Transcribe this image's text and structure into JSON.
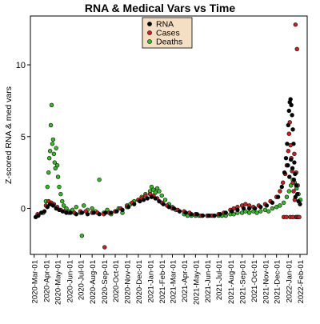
{
  "chart_data": {
    "type": "scatter",
    "title": "RNA & Medical Vars vs Time",
    "xlabel": "",
    "ylabel": "Z-scored RNA & med vars",
    "x_ticks": [
      "2020-Mar-01",
      "2020-Apr-01",
      "2020-May-01",
      "2020-Jun-01",
      "2020-Jul-01",
      "2020-Aug-01",
      "2020-Sep-01",
      "2020-Oct-01",
      "2020-Nov-01",
      "2020-Dec-01",
      "2021-Jan-01",
      "2021-Feb-01",
      "2021-Mar-01",
      "2021-Apr-01",
      "2021-May-01",
      "2021-Jun-01",
      "2021-Jul-01",
      "2021-Aug-01",
      "2021-Sep-01",
      "2021-Oct-01",
      "2021-Nov-01",
      "2021-Dec-01",
      "2022-Jan-01",
      "2022-Feb-01"
    ],
    "y_ticks": [
      0,
      5,
      10
    ],
    "xlim": [
      "2020-Feb-20",
      "2022-Feb-20"
    ],
    "ylim": [
      -3.2,
      13.4
    ],
    "grid": false,
    "legend": {
      "position": "top-center",
      "background": "#f5dfc4",
      "entries": [
        {
          "name": "RNA",
          "color": "#000000"
        },
        {
          "name": "Cases",
          "color": "#cc1f1f"
        },
        {
          "name": "Deaths",
          "color": "#33bb22"
        }
      ]
    },
    "series": [
      {
        "name": "RNA",
        "color": "#000000",
        "points": [
          [
            "2020-Mar-05",
            -0.6
          ],
          [
            "2020-Mar-12",
            -0.5
          ],
          [
            "2020-Mar-20",
            -0.3
          ],
          [
            "2020-Mar-28",
            -0.2
          ],
          [
            "2020-Apr-05",
            0.1
          ],
          [
            "2020-Apr-12",
            0.3
          ],
          [
            "2020-Apr-20",
            0.2
          ],
          [
            "2020-Apr-28",
            0.0
          ],
          [
            "2020-May-06",
            -0.1
          ],
          [
            "2020-May-15",
            -0.2
          ],
          [
            "2020-May-25",
            -0.3
          ],
          [
            "2020-Jun-05",
            -0.3
          ],
          [
            "2020-Jun-20",
            -0.4
          ],
          [
            "2020-Jul-05",
            -0.3
          ],
          [
            "2020-Jul-20",
            -0.4
          ],
          [
            "2020-Aug-05",
            -0.3
          ],
          [
            "2020-Aug-20",
            -0.4
          ],
          [
            "2020-Sep-05",
            -0.3
          ],
          [
            "2020-Sep-20",
            -0.3
          ],
          [
            "2020-Oct-05",
            -0.2
          ],
          [
            "2020-Oct-20",
            -0.1
          ],
          [
            "2020-Nov-05",
            0.1
          ],
          [
            "2020-Nov-20",
            0.3
          ],
          [
            "2020-Dec-05",
            0.5
          ],
          [
            "2020-Dec-15",
            0.6
          ],
          [
            "2020-Dec-25",
            0.7
          ],
          [
            "2021-Jan-05",
            0.8
          ],
          [
            "2021-Jan-15",
            0.7
          ],
          [
            "2021-Jan-25",
            0.5
          ],
          [
            "2021-Feb-05",
            0.3
          ],
          [
            "2021-Feb-20",
            0.1
          ],
          [
            "2021-Mar-05",
            0.0
          ],
          [
            "2021-Mar-20",
            -0.2
          ],
          [
            "2021-Apr-05",
            -0.3
          ],
          [
            "2021-Apr-20",
            -0.4
          ],
          [
            "2021-May-05",
            -0.4
          ],
          [
            "2021-May-20",
            -0.5
          ],
          [
            "2021-Jun-05",
            -0.5
          ],
          [
            "2021-Jun-20",
            -0.5
          ],
          [
            "2021-Jul-05",
            -0.4
          ],
          [
            "2021-Jul-20",
            -0.3
          ],
          [
            "2021-Aug-05",
            -0.2
          ],
          [
            "2021-Aug-20",
            -0.1
          ],
          [
            "2021-Sep-05",
            0.0
          ],
          [
            "2021-Sep-20",
            0.0
          ],
          [
            "2021-Oct-05",
            0.0
          ],
          [
            "2021-Oct-20",
            0.1
          ],
          [
            "2021-Nov-05",
            0.2
          ],
          [
            "2021-Nov-20",
            0.4
          ],
          [
            "2021-Dec-05",
            0.8
          ],
          [
            "2021-Dec-15",
            1.5
          ],
          [
            "2021-Dec-22",
            2.5
          ],
          [
            "2021-Dec-26",
            3.5
          ],
          [
            "2021-Dec-29",
            4.5
          ],
          [
            "2022-Jan-01",
            5.8
          ],
          [
            "2022-Jan-03",
            6.8
          ],
          [
            "2022-Jan-05",
            7.4
          ],
          [
            "2022-Jan-07",
            7.6
          ],
          [
            "2022-Jan-09",
            7.2
          ],
          [
            "2022-Jan-11",
            6.5
          ],
          [
            "2022-Jan-13",
            5.5
          ],
          [
            "2022-Jan-15",
            4.5
          ],
          [
            "2022-Jan-17",
            3.2
          ],
          [
            "2022-Jan-19",
            2.4
          ],
          [
            "2022-Jan-22",
            1.6
          ],
          [
            "2022-Jan-25",
            1.0
          ],
          [
            "2022-Jan-28",
            0.5
          ],
          [
            "2022-Feb-01",
            0.3
          ],
          [
            "2021-Dec-31",
            3.0
          ],
          [
            "2022-Jan-04",
            2.2
          ],
          [
            "2022-Jan-08",
            3.4
          ],
          [
            "2022-Jan-12",
            2.8
          ],
          [
            "2022-Jan-16",
            2.0
          ],
          [
            "2022-Jan-20",
            0.8
          ]
        ]
      },
      {
        "name": "Cases",
        "color": "#cc1f1f",
        "points": [
          [
            "2020-Mar-10",
            -0.4
          ],
          [
            "2020-Mar-20",
            -0.3
          ],
          [
            "2020-Apr-01",
            0.2
          ],
          [
            "2020-Apr-08",
            0.5
          ],
          [
            "2020-Apr-15",
            0.4
          ],
          [
            "2020-Apr-22",
            0.3
          ],
          [
            "2020-May-01",
            0.1
          ],
          [
            "2020-May-10",
            -0.1
          ],
          [
            "2020-May-20",
            -0.2
          ],
          [
            "2020-Jun-01",
            -0.3
          ],
          [
            "2020-Jun-15",
            -0.3
          ],
          [
            "2020-Jul-01",
            -0.2
          ],
          [
            "2020-Jul-15",
            -0.2
          ],
          [
            "2020-Aug-01",
            -0.3
          ],
          [
            "2020-Aug-15",
            -0.3
          ],
          [
            "2020-Sep-01",
            -0.4
          ],
          [
            "2020-Sep-15",
            -0.3
          ],
          [
            "2020-Sep-03",
            -2.7
          ],
          [
            "2020-Oct-01",
            -0.2
          ],
          [
            "2020-Oct-15",
            0.0
          ],
          [
            "2020-Nov-01",
            0.2
          ],
          [
            "2020-Nov-15",
            0.4
          ],
          [
            "2020-Dec-01",
            0.6
          ],
          [
            "2020-Dec-10",
            0.7
          ],
          [
            "2020-Dec-20",
            0.9
          ],
          [
            "2021-Jan-01",
            1.0
          ],
          [
            "2021-Jan-10",
            0.9
          ],
          [
            "2021-Jan-20",
            0.7
          ],
          [
            "2021-Feb-01",
            0.4
          ],
          [
            "2021-Feb-15",
            0.2
          ],
          [
            "2021-Mar-01",
            0.0
          ],
          [
            "2021-Mar-15",
            -0.1
          ],
          [
            "2021-Apr-01",
            -0.2
          ],
          [
            "2021-Apr-15",
            -0.3
          ],
          [
            "2021-May-01",
            -0.4
          ],
          [
            "2021-May-15",
            -0.5
          ],
          [
            "2021-Jun-01",
            -0.5
          ],
          [
            "2021-Jun-15",
            -0.5
          ],
          [
            "2021-Jul-01",
            -0.4
          ],
          [
            "2021-Jul-15",
            -0.3
          ],
          [
            "2021-Aug-01",
            -0.1
          ],
          [
            "2021-Aug-10",
            0.0
          ],
          [
            "2021-Aug-20",
            0.1
          ],
          [
            "2021-Sep-01",
            0.2
          ],
          [
            "2021-Sep-10",
            0.3
          ],
          [
            "2021-Sep-20",
            0.2
          ],
          [
            "2021-Oct-01",
            0.1
          ],
          [
            "2021-Oct-15",
            0.2
          ],
          [
            "2021-Nov-01",
            0.3
          ],
          [
            "2021-Nov-15",
            0.5
          ],
          [
            "2021-Dec-01",
            0.8
          ],
          [
            "2021-Dec-10",
            1.2
          ],
          [
            "2021-Dec-18",
            1.8
          ],
          [
            "2021-Dec-24",
            2.4
          ],
          [
            "2021-Dec-28",
            3.0
          ],
          [
            "2022-Jan-01",
            4.0
          ],
          [
            "2022-Jan-03",
            5.2
          ],
          [
            "2022-Jan-05",
            6.0
          ],
          [
            "2022-Jan-07",
            4.4
          ],
          [
            "2022-Jan-09",
            3.5
          ],
          [
            "2022-Jan-11",
            2.6
          ],
          [
            "2022-Jan-13",
            1.8
          ],
          [
            "2022-Jan-15",
            1.2
          ],
          [
            "2022-Jan-18",
            0.6
          ],
          [
            "2022-Jan-21",
            -0.6
          ],
          [
            "2022-Jan-24",
            -0.6
          ],
          [
            "2022-Jan-27",
            -0.6
          ],
          [
            "2022-Jan-30",
            -0.6
          ],
          [
            "2022-Jan-20",
            12.8
          ],
          [
            "2022-Jan-24",
            11.1
          ],
          [
            "2022-Jan-17",
            3.8
          ],
          [
            "2022-Jan-22",
            2.5
          ],
          [
            "2022-Jan-26",
            1.6
          ],
          [
            "2021-Dec-20",
            -0.6
          ],
          [
            "2021-Dec-27",
            -0.6
          ],
          [
            "2022-Jan-06",
            -0.6
          ],
          [
            "2022-Jan-13",
            -0.6
          ]
        ]
      },
      {
        "name": "Deaths",
        "color": "#33bb22",
        "points": [
          [
            "2020-Mar-25",
            -0.3
          ],
          [
            "2020-Apr-01",
            0.5
          ],
          [
            "2020-Apr-05",
            1.5
          ],
          [
            "2020-Apr-08",
            2.5
          ],
          [
            "2020-Apr-10",
            3.5
          ],
          [
            "2020-Apr-12",
            4.0
          ],
          [
            "2020-Apr-14",
            5.8
          ],
          [
            "2020-Apr-16",
            7.2
          ],
          [
            "2020-Apr-18",
            4.5
          ],
          [
            "2020-Apr-20",
            4.8
          ],
          [
            "2020-Apr-22",
            3.8
          ],
          [
            "2020-Apr-24",
            3.2
          ],
          [
            "2020-Apr-26",
            2.8
          ],
          [
            "2020-Apr-28",
            4.2
          ],
          [
            "2020-May-01",
            3.0
          ],
          [
            "2020-May-03",
            2.2
          ],
          [
            "2020-May-06",
            1.5
          ],
          [
            "2020-May-10",
            1.0
          ],
          [
            "2020-May-14",
            0.5
          ],
          [
            "2020-May-18",
            0.2
          ],
          [
            "2020-May-25",
            0.0
          ],
          [
            "2020-Jun-01",
            -0.2
          ],
          [
            "2020-Jun-10",
            -0.1
          ],
          [
            "2020-Jun-20",
            0.1
          ],
          [
            "2020-Jul-01",
            -0.3
          ],
          [
            "2020-Jul-05",
            -1.9
          ],
          [
            "2020-Jul-10",
            0.2
          ],
          [
            "2020-Jul-20",
            -0.1
          ],
          [
            "2020-Aug-01",
            0.0
          ],
          [
            "2020-Aug-10",
            -0.2
          ],
          [
            "2020-Aug-20",
            2.0
          ],
          [
            "2020-Sep-01",
            -0.3
          ],
          [
            "2020-Sep-10",
            -0.1
          ],
          [
            "2020-Sep-20",
            -0.4
          ],
          [
            "2020-Oct-01",
            -0.2
          ],
          [
            "2020-Oct-10",
            0.0
          ],
          [
            "2020-Oct-20",
            -0.3
          ],
          [
            "2020-Nov-01",
            0.1
          ],
          [
            "2020-Nov-10",
            0.3
          ],
          [
            "2020-Nov-20",
            0.5
          ],
          [
            "2020-Dec-01",
            0.6
          ],
          [
            "2020-Dec-10",
            0.8
          ],
          [
            "2020-Dec-20",
            1.0
          ],
          [
            "2021-Jan-01",
            1.2
          ],
          [
            "2021-Jan-05",
            1.5
          ],
          [
            "2021-Jan-10",
            1.3
          ],
          [
            "2021-Jan-15",
            1.1
          ],
          [
            "2021-Jan-20",
            1.4
          ],
          [
            "2021-Jan-25",
            1.2
          ],
          [
            "2021-Feb-01",
            0.9
          ],
          [
            "2021-Feb-10",
            0.6
          ],
          [
            "2021-Feb-20",
            0.3
          ],
          [
            "2021-Mar-01",
            0.1
          ],
          [
            "2021-Mar-10",
            -0.1
          ],
          [
            "2021-Mar-20",
            -0.2
          ],
          [
            "2021-Apr-01",
            -0.4
          ],
          [
            "2021-Apr-10",
            -0.5
          ],
          [
            "2021-Apr-20",
            -0.5
          ],
          [
            "2021-May-01",
            -0.5
          ],
          [
            "2021-May-10",
            -0.5
          ],
          [
            "2021-May-20",
            -0.5
          ],
          [
            "2021-Jun-01",
            -0.5
          ],
          [
            "2021-Jun-10",
            -0.5
          ],
          [
            "2021-Jun-20",
            -0.5
          ],
          [
            "2021-Jul-01",
            -0.5
          ],
          [
            "2021-Jul-10",
            -0.5
          ],
          [
            "2021-Jul-20",
            -0.5
          ],
          [
            "2021-Aug-01",
            -0.4
          ],
          [
            "2021-Aug-10",
            -0.4
          ],
          [
            "2021-Aug-20",
            -0.3
          ],
          [
            "2021-Sep-01",
            -0.3
          ],
          [
            "2021-Sep-10",
            -0.2
          ],
          [
            "2021-Sep-20",
            -0.3
          ],
          [
            "2021-Oct-01",
            -0.2
          ],
          [
            "2021-Oct-10",
            -0.3
          ],
          [
            "2021-Oct-20",
            -0.2
          ],
          [
            "2021-Nov-01",
            -0.1
          ],
          [
            "2021-Nov-10",
            -0.2
          ],
          [
            "2021-Nov-20",
            0.0
          ],
          [
            "2021-Dec-01",
            0.1
          ],
          [
            "2021-Dec-10",
            0.2
          ],
          [
            "2021-Dec-20",
            0.4
          ],
          [
            "2021-Dec-28",
            0.8
          ],
          [
            "2022-Jan-03",
            1.2
          ],
          [
            "2022-Jan-08",
            1.6
          ],
          [
            "2022-Jan-13",
            2.0
          ],
          [
            "2022-Jan-18",
            1.8
          ],
          [
            "2022-Jan-23",
            1.4
          ],
          [
            "2022-Jan-28",
            1.0
          ],
          [
            "2022-Feb-02",
            0.6
          ]
        ]
      }
    ]
  }
}
